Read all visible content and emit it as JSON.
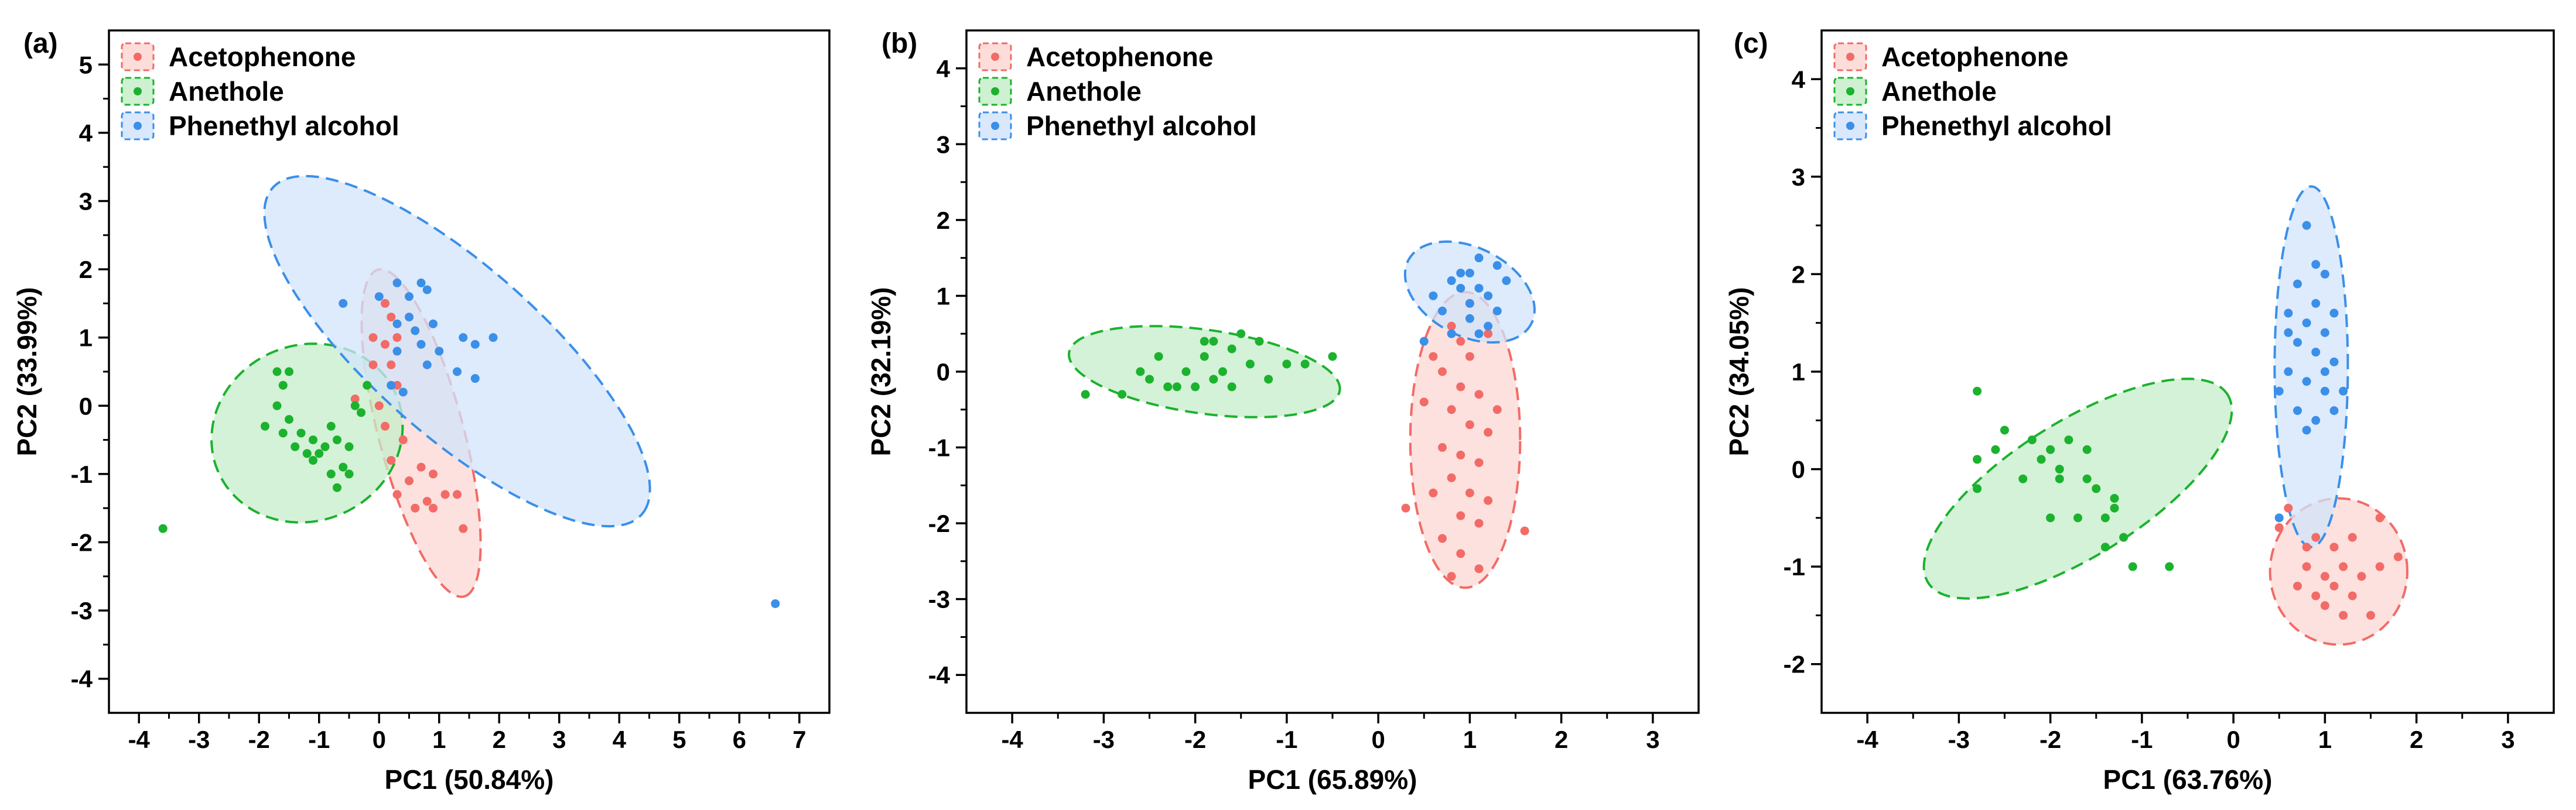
{
  "figure": {
    "colors": {
      "Acetophenone": "#f26b67",
      "Anethole": "#1bb22e",
      "Phenethyl alcohol": "#3b8fe8"
    },
    "fills": {
      "Acetophenone": "#fbd7d3",
      "Anethole": "#c6eec9",
      "Phenethyl alcohol": "#d2e4fb"
    }
  },
  "chart_data": [
    {
      "panel": "(a)",
      "type": "scatter",
      "xlabel": "PC1 (50.84%)",
      "ylabel": "PC2 (33.99%)",
      "xlim": [
        -4.5,
        7.5
      ],
      "ylim": [
        -4.5,
        5.5
      ],
      "xticks": [
        -4,
        -3,
        -2,
        -1,
        0,
        1,
        2,
        3,
        4,
        5,
        6,
        7
      ],
      "yticks": [
        -4,
        -3,
        -2,
        -1,
        0,
        1,
        2,
        3,
        4,
        5
      ],
      "legend": [
        "Acetophenone",
        "Anethole",
        "Phenethyl alcohol"
      ],
      "legend_position": "top-left",
      "grid": false,
      "series": [
        {
          "name": "Acetophenone",
          "points": [
            [
              0.1,
              1.5
            ],
            [
              0.2,
              1.3
            ],
            [
              0.3,
              1.0
            ],
            [
              0.1,
              0.9
            ],
            [
              -0.1,
              1.0
            ],
            [
              0.2,
              0.6
            ],
            [
              -0.1,
              0.6
            ],
            [
              0.3,
              0.3
            ],
            [
              0.0,
              0.0
            ],
            [
              -0.4,
              0.1
            ],
            [
              0.1,
              -0.3
            ],
            [
              0.4,
              -0.5
            ],
            [
              0.2,
              -0.8
            ],
            [
              0.5,
              -1.1
            ],
            [
              0.7,
              -0.9
            ],
            [
              0.9,
              -1.0
            ],
            [
              1.1,
              -1.3
            ],
            [
              0.8,
              -1.4
            ],
            [
              1.3,
              -1.3
            ],
            [
              1.4,
              -1.8
            ],
            [
              0.6,
              -1.5
            ],
            [
              0.3,
              -1.3
            ],
            [
              0.9,
              -1.5
            ]
          ],
          "ellipse": {
            "cx": 0.7,
            "cy": -0.4,
            "rx": 2.5,
            "ry": 0.7,
            "angle_deg": -73
          }
        },
        {
          "name": "Anethole",
          "points": [
            [
              -1.7,
              0.5
            ],
            [
              -1.5,
              0.5
            ],
            [
              -1.6,
              0.3
            ],
            [
              -1.7,
              0.0
            ],
            [
              -1.5,
              -0.2
            ],
            [
              -1.3,
              -0.4
            ],
            [
              -1.1,
              -0.5
            ],
            [
              -0.8,
              -0.3
            ],
            [
              -1.4,
              -0.6
            ],
            [
              -1.2,
              -0.7
            ],
            [
              -1.0,
              -0.7
            ],
            [
              -0.9,
              -0.6
            ],
            [
              -0.7,
              -0.5
            ],
            [
              -0.6,
              -0.9
            ],
            [
              -0.5,
              -1.0
            ],
            [
              -0.7,
              -1.2
            ],
            [
              -1.9,
              -0.3
            ],
            [
              -0.2,
              0.3
            ],
            [
              -0.3,
              -0.1
            ],
            [
              -0.4,
              0.0
            ],
            [
              -1.1,
              -0.8
            ],
            [
              -0.5,
              -0.6
            ],
            [
              -1.6,
              -0.4
            ],
            [
              -0.8,
              -1.0
            ],
            [
              -3.6,
              -1.8
            ]
          ],
          "ellipse": {
            "cx": -1.2,
            "cy": -0.4,
            "rx": 1.6,
            "ry": 1.3,
            "angle_deg": 10
          }
        },
        {
          "name": "Phenethyl alcohol",
          "points": [
            [
              -0.6,
              1.5
            ],
            [
              0.0,
              1.6
            ],
            [
              0.3,
              1.8
            ],
            [
              0.5,
              1.6
            ],
            [
              0.7,
              1.8
            ],
            [
              0.8,
              1.7
            ],
            [
              0.5,
              1.3
            ],
            [
              0.3,
              1.2
            ],
            [
              0.6,
              1.1
            ],
            [
              0.9,
              1.2
            ],
            [
              0.7,
              0.9
            ],
            [
              1.0,
              0.8
            ],
            [
              0.8,
              0.6
            ],
            [
              1.4,
              1.0
            ],
            [
              1.6,
              0.9
            ],
            [
              1.9,
              1.0
            ],
            [
              1.3,
              0.5
            ],
            [
              1.6,
              0.4
            ],
            [
              0.2,
              0.3
            ],
            [
              0.4,
              0.2
            ],
            [
              0.3,
              0.8
            ],
            [
              6.6,
              -2.9
            ]
          ],
          "ellipse": {
            "cx": 1.3,
            "cy": 0.8,
            "rx": 3.9,
            "ry": 1.3,
            "angle_deg": -37
          }
        }
      ]
    },
    {
      "panel": "(b)",
      "type": "scatter",
      "xlabel": "PC1 (65.89%)",
      "ylabel": "PC2 (32.19%)",
      "xlim": [
        -4.5,
        3.5
      ],
      "ylim": [
        -4.5,
        4.5
      ],
      "xticks": [
        -4,
        -3,
        -2,
        -1,
        0,
        1,
        2,
        3
      ],
      "yticks": [
        -4,
        -3,
        -2,
        -1,
        0,
        1,
        2,
        3,
        4
      ],
      "legend": [
        "Acetophenone",
        "Anethole",
        "Phenethyl alcohol"
      ],
      "legend_position": "top-left",
      "grid": false,
      "series": [
        {
          "name": "Acetophenone",
          "points": [
            [
              0.8,
              0.6
            ],
            [
              0.9,
              0.4
            ],
            [
              1.0,
              0.2
            ],
            [
              0.7,
              0.0
            ],
            [
              0.9,
              -0.2
            ],
            [
              1.1,
              -0.3
            ],
            [
              0.8,
              -0.5
            ],
            [
              1.0,
              -0.7
            ],
            [
              1.2,
              -0.8
            ],
            [
              0.7,
              -1.0
            ],
            [
              0.9,
              -1.1
            ],
            [
              1.1,
              -1.2
            ],
            [
              0.8,
              -1.4
            ],
            [
              1.0,
              -1.6
            ],
            [
              1.2,
              -1.7
            ],
            [
              0.9,
              -1.9
            ],
            [
              1.1,
              -2.0
            ],
            [
              0.7,
              -2.2
            ],
            [
              0.9,
              -2.4
            ],
            [
              0.3,
              -1.8
            ],
            [
              1.6,
              -2.1
            ],
            [
              0.5,
              -0.4
            ],
            [
              1.3,
              -0.5
            ],
            [
              0.6,
              -1.6
            ],
            [
              1.1,
              -2.6
            ],
            [
              0.8,
              -2.7
            ],
            [
              1.0,
              0.9
            ],
            [
              0.6,
              0.2
            ],
            [
              1.2,
              0.5
            ]
          ],
          "ellipse": {
            "cx": 0.95,
            "cy": -0.9,
            "rx": 0.6,
            "ry": 1.95,
            "angle_deg": 0
          }
        },
        {
          "name": "Anethole",
          "points": [
            [
              -3.2,
              -0.3
            ],
            [
              -2.8,
              -0.3
            ],
            [
              -2.5,
              -0.1
            ],
            [
              -2.3,
              -0.2
            ],
            [
              -2.1,
              0.0
            ],
            [
              -1.9,
              0.2
            ],
            [
              -1.8,
              0.4
            ],
            [
              -1.6,
              0.3
            ],
            [
              -1.5,
              0.5
            ],
            [
              -1.3,
              0.4
            ],
            [
              -1.7,
              0.0
            ],
            [
              -2.0,
              -0.2
            ],
            [
              -2.2,
              -0.2
            ],
            [
              -1.4,
              0.1
            ],
            [
              -1.2,
              -0.1
            ],
            [
              -1.8,
              -0.1
            ],
            [
              -1.6,
              -0.2
            ],
            [
              -2.4,
              0.2
            ],
            [
              -1.0,
              0.1
            ],
            [
              -0.8,
              0.1
            ],
            [
              -0.5,
              0.2
            ],
            [
              -1.9,
              0.4
            ],
            [
              -2.6,
              0.0
            ]
          ],
          "ellipse": {
            "cx": -1.9,
            "cy": 0.0,
            "rx": 1.5,
            "ry": 0.55,
            "angle_deg": -10
          }
        },
        {
          "name": "Phenethyl alcohol",
          "points": [
            [
              0.6,
              1.0
            ],
            [
              0.8,
              1.2
            ],
            [
              1.0,
              1.3
            ],
            [
              1.1,
              1.5
            ],
            [
              1.3,
              1.4
            ],
            [
              0.9,
              1.1
            ],
            [
              1.2,
              1.0
            ],
            [
              0.7,
              0.8
            ],
            [
              1.0,
              0.7
            ],
            [
              1.3,
              0.8
            ],
            [
              0.5,
              0.4
            ],
            [
              0.8,
              0.5
            ],
            [
              1.1,
              0.5
            ],
            [
              1.4,
              1.2
            ],
            [
              1.2,
              0.6
            ],
            [
              1.0,
              0.9
            ],
            [
              0.9,
              1.3
            ],
            [
              1.1,
              1.1
            ]
          ],
          "ellipse": {
            "cx": 1.0,
            "cy": 1.05,
            "rx": 0.8,
            "ry": 0.55,
            "angle_deg": -40
          }
        }
      ]
    },
    {
      "panel": "(c)",
      "type": "scatter",
      "xlabel": "PC1 (63.76%)",
      "ylabel": "PC2 (34.05%)",
      "xlim": [
        -4.5,
        3.5
      ],
      "ylim": [
        -2.5,
        4.5
      ],
      "xticks": [
        -4,
        -3,
        -2,
        -1,
        0,
        1,
        2,
        3
      ],
      "yticks": [
        -2,
        -1,
        0,
        1,
        2,
        3,
        4
      ],
      "legend": [
        "Acetophenone",
        "Anethole",
        "Phenethyl alcohol"
      ],
      "legend_position": "top-left",
      "grid": false,
      "series": [
        {
          "name": "Acetophenone",
          "points": [
            [
              0.6,
              -0.4
            ],
            [
              0.9,
              -0.7
            ],
            [
              1.1,
              -0.8
            ],
            [
              1.3,
              -0.7
            ],
            [
              0.8,
              -1.0
            ],
            [
              1.0,
              -1.1
            ],
            [
              1.2,
              -1.0
            ],
            [
              1.4,
              -1.1
            ],
            [
              1.6,
              -1.0
            ],
            [
              0.9,
              -1.3
            ],
            [
              1.1,
              -1.2
            ],
            [
              1.3,
              -1.3
            ],
            [
              1.5,
              -1.5
            ],
            [
              1.0,
              -1.4
            ],
            [
              1.2,
              -1.5
            ],
            [
              0.7,
              -1.2
            ],
            [
              1.8,
              -0.9
            ],
            [
              1.6,
              -0.5
            ],
            [
              0.5,
              -0.6
            ],
            [
              0.8,
              -0.8
            ]
          ],
          "ellipse": {
            "cx": 1.15,
            "cy": -1.05,
            "rx": 0.75,
            "ry": 0.75,
            "angle_deg": 0
          }
        },
        {
          "name": "Anethole",
          "points": [
            [
              -2.8,
              0.8
            ],
            [
              -2.5,
              0.4
            ],
            [
              -2.2,
              0.3
            ],
            [
              -2.0,
              0.2
            ],
            [
              -1.8,
              0.3
            ],
            [
              -1.9,
              0.0
            ],
            [
              -1.6,
              -0.1
            ],
            [
              -1.5,
              -0.2
            ],
            [
              -1.3,
              -0.3
            ],
            [
              -1.4,
              -0.5
            ],
            [
              -1.2,
              -0.7
            ],
            [
              -1.1,
              -1.0
            ],
            [
              -0.7,
              -1.0
            ],
            [
              -2.3,
              -0.1
            ],
            [
              -2.0,
              -0.5
            ],
            [
              -1.7,
              -0.5
            ],
            [
              -2.8,
              0.1
            ],
            [
              -2.6,
              0.2
            ],
            [
              -1.4,
              -0.8
            ],
            [
              -1.9,
              -0.1
            ],
            [
              -2.1,
              0.1
            ],
            [
              -1.6,
              0.2
            ],
            [
              -1.3,
              -0.4
            ],
            [
              -2.8,
              -0.2
            ]
          ],
          "ellipse": {
            "cx": -1.7,
            "cy": -0.2,
            "rx": 1.9,
            "ry": 0.7,
            "angle_deg": 30
          }
        },
        {
          "name": "Phenethyl alcohol",
          "points": [
            [
              0.8,
              2.5
            ],
            [
              0.9,
              2.1
            ],
            [
              1.0,
              2.0
            ],
            [
              0.7,
              1.9
            ],
            [
              0.9,
              1.7
            ],
            [
              0.6,
              1.6
            ],
            [
              0.8,
              1.5
            ],
            [
              1.0,
              1.4
            ],
            [
              1.1,
              1.6
            ],
            [
              0.7,
              1.3
            ],
            [
              0.9,
              1.2
            ],
            [
              1.1,
              1.1
            ],
            [
              0.6,
              1.0
            ],
            [
              0.8,
              0.9
            ],
            [
              1.0,
              0.8
            ],
            [
              0.5,
              0.8
            ],
            [
              0.7,
              0.6
            ],
            [
              0.9,
              0.5
            ],
            [
              1.1,
              0.6
            ],
            [
              1.2,
              0.8
            ],
            [
              0.6,
              1.4
            ],
            [
              1.0,
              1.0
            ],
            [
              0.5,
              -0.5
            ],
            [
              0.8,
              0.4
            ]
          ],
          "ellipse": {
            "cx": 0.85,
            "cy": 1.05,
            "rx": 0.4,
            "ry": 1.85,
            "angle_deg": 0
          }
        }
      ]
    }
  ]
}
